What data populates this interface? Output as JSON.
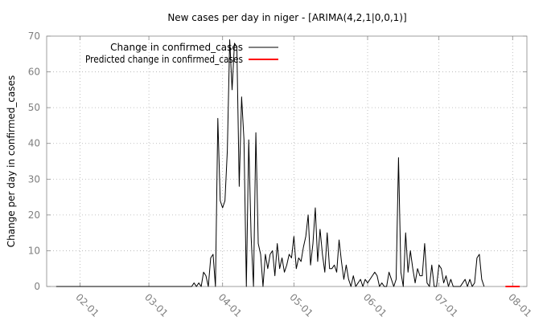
{
  "chart_data": {
    "type": "line",
    "title": "New cases per day in niger -  [ARIMA(4,2,1|0,0,1)]",
    "xlabel": "",
    "ylabel": "Change per day in confirmed_cases",
    "x_ticks": [
      "02-01",
      "03-01",
      "04-01",
      "05-01",
      "06-01",
      "07-01",
      "08-01"
    ],
    "xlim": [
      "2020-01-18",
      "2020-08-07"
    ],
    "ylim": [
      0,
      70
    ],
    "y_ticks": [
      0,
      10,
      20,
      30,
      40,
      50,
      60,
      70
    ],
    "grid": true,
    "legend": "top-left",
    "series": [
      {
        "name": "Change in confirmed_cases",
        "color": "#000000",
        "x_start": "2020-01-22",
        "values": [
          0,
          0,
          0,
          0,
          0,
          0,
          0,
          0,
          0,
          0,
          0,
          0,
          0,
          0,
          0,
          0,
          0,
          0,
          0,
          0,
          0,
          0,
          0,
          0,
          0,
          0,
          0,
          0,
          0,
          0,
          0,
          0,
          0,
          0,
          0,
          0,
          0,
          0,
          0,
          0,
          0,
          0,
          0,
          0,
          0,
          0,
          0,
          0,
          0,
          0,
          0,
          0,
          0,
          0,
          0,
          0,
          0,
          0,
          1,
          0,
          1,
          0,
          4,
          3,
          0,
          8,
          9,
          0,
          47,
          24,
          22,
          24,
          38,
          69,
          55,
          68,
          67,
          28,
          53,
          41,
          0,
          41,
          14,
          0,
          43,
          12,
          9,
          0,
          9,
          5,
          9,
          10,
          3,
          12,
          5,
          8,
          4,
          6,
          9,
          8,
          14,
          5,
          8,
          7,
          11,
          14,
          20,
          6,
          12,
          22,
          7,
          16,
          9,
          4,
          15,
          5,
          5,
          6,
          4,
          13,
          7,
          2,
          6,
          2,
          0,
          3,
          0,
          1,
          2,
          0,
          2,
          1,
          2,
          3,
          4,
          3,
          0,
          1,
          0,
          0,
          4,
          2,
          0,
          2,
          36,
          4,
          0,
          15,
          4,
          10,
          5,
          1,
          5,
          3,
          3,
          12,
          1,
          0,
          6,
          0,
          0,
          6,
          5,
          1,
          3,
          0,
          2,
          0,
          0,
          0,
          0,
          1,
          2,
          0,
          2,
          0,
          1,
          8,
          9,
          2,
          0
        ]
      },
      {
        "name": "Predicted change in confirmed_cases",
        "color": "#ff0000",
        "x": [
          "2020-07-29",
          "2020-08-04"
        ],
        "values": [
          0,
          0
        ]
      }
    ]
  }
}
